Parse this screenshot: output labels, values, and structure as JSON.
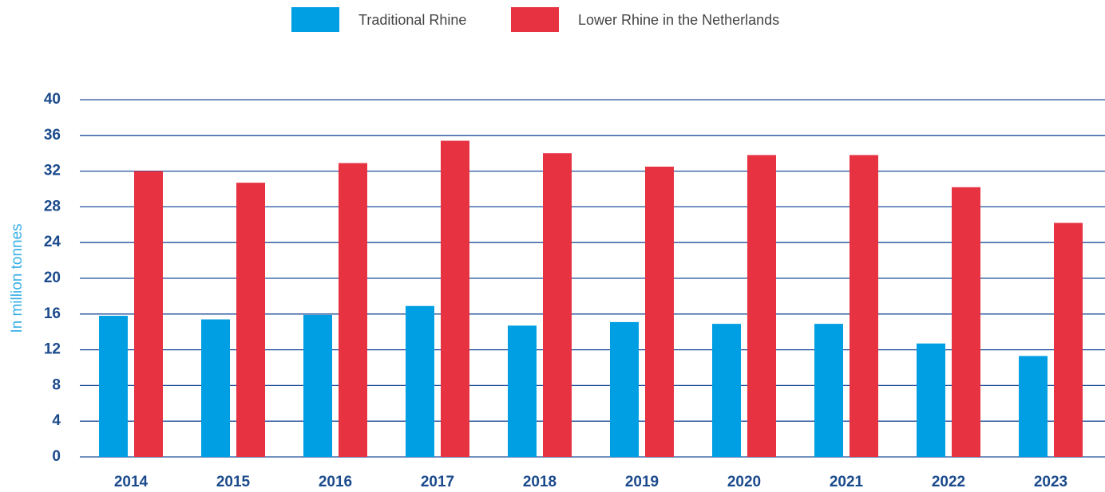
{
  "chart_data": {
    "type": "bar",
    "y_label": "In million tonnes",
    "categories": [
      "2014",
      "2015",
      "2016",
      "2017",
      "2018",
      "2019",
      "2020",
      "2021",
      "2022",
      "2023"
    ],
    "series": [
      {
        "name": "Traditional Rhine",
        "color": "#009fe3",
        "values": [
          15.8,
          15.4,
          15.9,
          16.9,
          14.7,
          15.1,
          14.9,
          14.9,
          12.7,
          11.3
        ]
      },
      {
        "name": "Lower Rhine in the Netherlands",
        "color": "#e63241",
        "values": [
          32.0,
          30.7,
          32.9,
          35.4,
          34.0,
          32.5,
          33.8,
          33.8,
          30.2,
          26.2
        ]
      }
    ],
    "ylim": [
      0,
      40
    ],
    "yticks": [
      0,
      4,
      8,
      12,
      16,
      20,
      24,
      28,
      32,
      36,
      40
    ],
    "grid": true,
    "legend": "top"
  }
}
